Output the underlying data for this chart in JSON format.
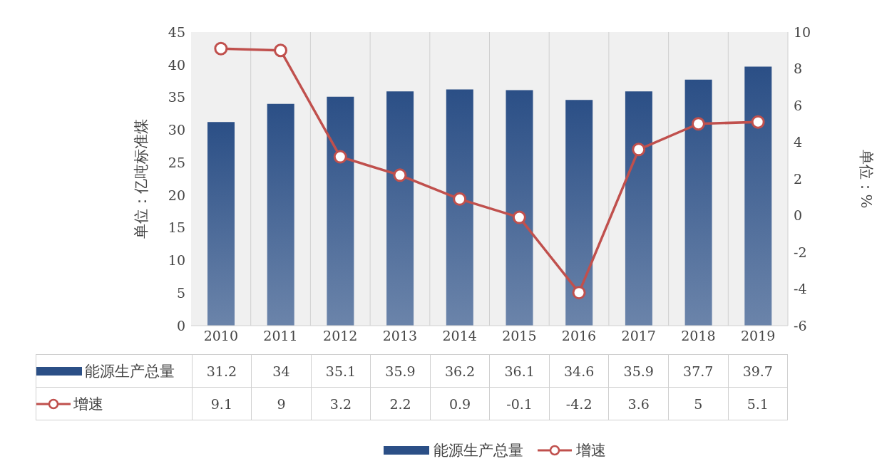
{
  "chart_data": {
    "type": "bar",
    "categories": [
      "2010",
      "2011",
      "2012",
      "2013",
      "2014",
      "2015",
      "2016",
      "2017",
      "2018",
      "2019"
    ],
    "series": [
      {
        "name": "能源生产总量",
        "color": "#2b4f86",
        "values": [
          31.2,
          34,
          35.1,
          35.9,
          36.2,
          36.1,
          34.6,
          35.9,
          37.7,
          39.7
        ]
      },
      {
        "name": "增速",
        "type": "line",
        "axis": "y2",
        "color": "#c0504d",
        "marker": "circle",
        "values": [
          9.1,
          9,
          3.2,
          2.2,
          0.9,
          -0.1,
          -4.2,
          3.6,
          5,
          5.1
        ]
      }
    ],
    "ylabel": "单位：亿吨标准煤",
    "y2label": "单位：%",
    "ylim": [
      0,
      45
    ],
    "yticks": [
      0,
      5,
      10,
      15,
      20,
      25,
      30,
      35,
      40,
      45
    ],
    "y2lim": [
      -6,
      10
    ],
    "y2ticks": [
      -6,
      -4,
      -2,
      0,
      2,
      4,
      6,
      8,
      10
    ],
    "grid": "x",
    "legend": "bottom",
    "data_labels": true
  }
}
